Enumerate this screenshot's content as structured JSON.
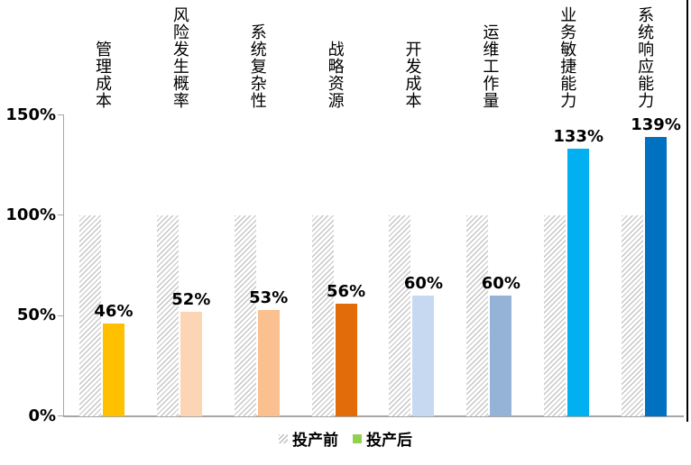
{
  "chart_data": {
    "type": "bar",
    "title": "",
    "categories": [
      "管理成本",
      "风险发生概率",
      "系统复杂性",
      "战略资源",
      "开发成本",
      "运维工作量",
      "业务敏捷能力",
      "系统响应能力"
    ],
    "series": [
      {
        "name": "投产前",
        "values": [
          100,
          100,
          100,
          100,
          100,
          100,
          100,
          100
        ],
        "style": "gray-diagonal-hatch"
      },
      {
        "name": "投产后",
        "values": [
          46,
          52,
          53,
          56,
          60,
          60,
          133,
          139
        ],
        "bar_colors": [
          "#FFC000",
          "#FCD5B4",
          "#FAC090",
          "#E36C0A",
          "#C6D9F0",
          "#95B3D7",
          "#00B0F0",
          "#0070C0"
        ]
      }
    ],
    "value_labels": [
      "46%",
      "52%",
      "53%",
      "56%",
      "60%",
      "60%",
      "133%",
      "139%"
    ],
    "y_ticks": [
      "0%",
      "50%",
      "100%",
      "150%"
    ],
    "ylim": [
      0,
      150
    ],
    "grid": false,
    "legend_position": "bottom",
    "legend": [
      {
        "label": "投产前",
        "swatch": "gray-diagonal-hatch"
      },
      {
        "label": "投产后",
        "swatch_color": "#92D050"
      }
    ]
  },
  "colors": {
    "axis": "#A6A6A6",
    "hatch_line": "#C6C6C6",
    "text": "#000000",
    "legend_after_swatch": "#92D050",
    "frame_line": "#000000",
    "background": "#FFFFFF"
  }
}
